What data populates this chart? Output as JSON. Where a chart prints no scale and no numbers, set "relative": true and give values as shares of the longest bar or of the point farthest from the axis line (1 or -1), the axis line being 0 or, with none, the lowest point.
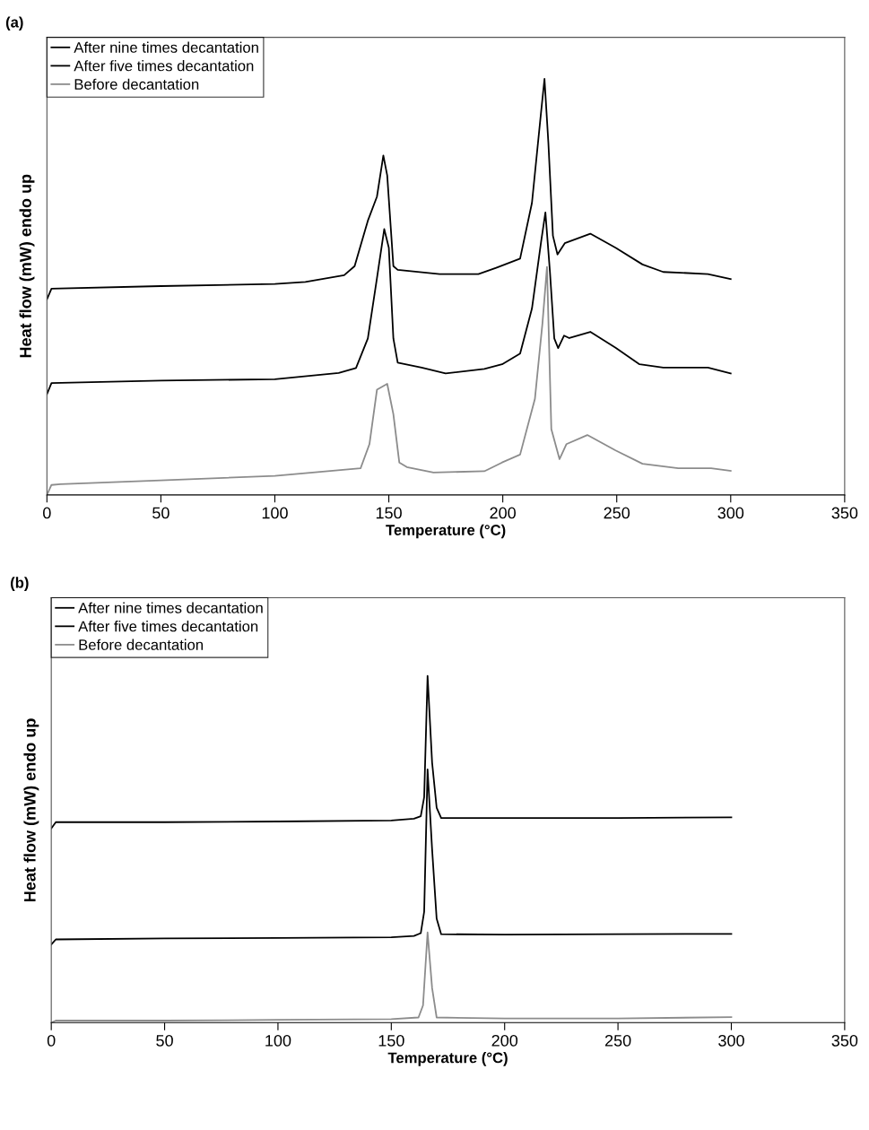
{
  "chart_data": [
    {
      "type": "line",
      "title": "(a)",
      "xlabel": "Temperature (°C)",
      "ylabel": "Heat flow (mW) endo up",
      "relative": true,
      "xlim": [
        0,
        350
      ],
      "xticks": [
        0,
        50,
        100,
        150,
        200,
        250,
        300,
        350
      ],
      "legend": "top left",
      "grid": false,
      "series": [
        {
          "name": "After nine times decantation",
          "color": "#000000",
          "x": [
            0,
            2,
            50,
            100,
            113.4,
            130.4,
            135,
            140.8,
            144.8,
            147.6,
            149.3,
            152,
            153.9,
            172.3,
            189.3,
            197.1,
            207.6,
            212.8,
            216.8,
            218.3,
            220,
            222,
            224,
            227.2,
            238.4,
            249.5,
            261.3,
            270.4,
            290,
            300
          ],
          "values": [
            0.47,
            0.496,
            0.502,
            0.507,
            0.512,
            0.528,
            0.55,
            0.659,
            0.717,
            0.816,
            0.768,
            0.55,
            0.541,
            0.531,
            0.531,
            0.546,
            0.568,
            0.702,
            0.92,
            1.0,
            0.847,
            0.623,
            0.578,
            0.605,
            0.628,
            0.594,
            0.554,
            0.536,
            0.531,
            0.519
          ]
        },
        {
          "name": "After five times decantation",
          "color": "#000000",
          "x": [
            0,
            2,
            50,
            100,
            128,
            135.6,
            140.8,
            144.8,
            148,
            150,
            152,
            153.9,
            164.4,
            174.9,
            191.9,
            199.7,
            207.6,
            212.8,
            216.8,
            218.7,
            220.7,
            222.6,
            224.3,
            226.9,
            229.2,
            238.4,
            249.5,
            260,
            270.4,
            290,
            300
          ],
          "values": [
            0.242,
            0.269,
            0.275,
            0.278,
            0.293,
            0.305,
            0.376,
            0.521,
            0.639,
            0.594,
            0.376,
            0.318,
            0.306,
            0.292,
            0.303,
            0.314,
            0.34,
            0.448,
            0.608,
            0.679,
            0.536,
            0.376,
            0.353,
            0.383,
            0.377,
            0.392,
            0.354,
            0.314,
            0.306,
            0.306,
            0.292
          ]
        },
        {
          "name": "Before decantation",
          "color": "#8c8c8c",
          "x": [
            0,
            2,
            5.9,
            50,
            100,
            137.6,
            141.5,
            144.8,
            149.3,
            152,
            154.6,
            157.9,
            169.6,
            191.9,
            199.7,
            207.6,
            214.1,
            217.4,
            219.4,
            221.3,
            224.9,
            227.9,
            237.1,
            249.5,
            261.3,
            277,
            291.4,
            300
          ],
          "values": [
            0.0,
            0.024,
            0.026,
            0.035,
            0.046,
            0.064,
            0.122,
            0.253,
            0.267,
            0.194,
            0.078,
            0.067,
            0.054,
            0.057,
            0.078,
            0.097,
            0.231,
            0.412,
            0.548,
            0.158,
            0.086,
            0.122,
            0.144,
            0.107,
            0.075,
            0.064,
            0.064,
            0.058
          ]
        }
      ]
    },
    {
      "type": "line",
      "title": "(b)",
      "xlabel": "Temperature (°C)",
      "ylabel": "Heat flow (mW) endo up",
      "relative": true,
      "xlim": [
        0,
        350
      ],
      "xticks": [
        0,
        50,
        100,
        150,
        200,
        250,
        300,
        350
      ],
      "legend": "top left",
      "grid": false,
      "series": [
        {
          "name": "After nine times decantation",
          "color": "#000000",
          "x": [
            0,
            2,
            50,
            100,
            150,
            160,
            163,
            164.5,
            166,
            168,
            170,
            172,
            200,
            250,
            300
          ],
          "values": [
            0.56,
            0.578,
            0.578,
            0.58,
            0.583,
            0.588,
            0.595,
            0.65,
            1.0,
            0.75,
            0.62,
            0.59,
            0.59,
            0.59,
            0.592
          ]
        },
        {
          "name": "After five times decantation",
          "color": "#000000",
          "x": [
            0,
            2,
            50,
            100,
            150,
            160,
            163,
            164.5,
            166,
            168,
            170,
            172,
            200,
            250,
            300
          ],
          "values": [
            0.225,
            0.24,
            0.243,
            0.244,
            0.246,
            0.25,
            0.258,
            0.32,
            0.73,
            0.5,
            0.3,
            0.255,
            0.254,
            0.255,
            0.256
          ]
        },
        {
          "name": "Before decantation",
          "color": "#8c8c8c",
          "x": [
            0,
            2,
            50,
            100,
            150,
            162,
            164,
            166,
            168,
            170,
            200,
            250,
            300
          ],
          "values": [
            0.0,
            0.006,
            0.006,
            0.008,
            0.01,
            0.015,
            0.05,
            0.26,
            0.1,
            0.015,
            0.012,
            0.012,
            0.016
          ]
        }
      ]
    }
  ]
}
